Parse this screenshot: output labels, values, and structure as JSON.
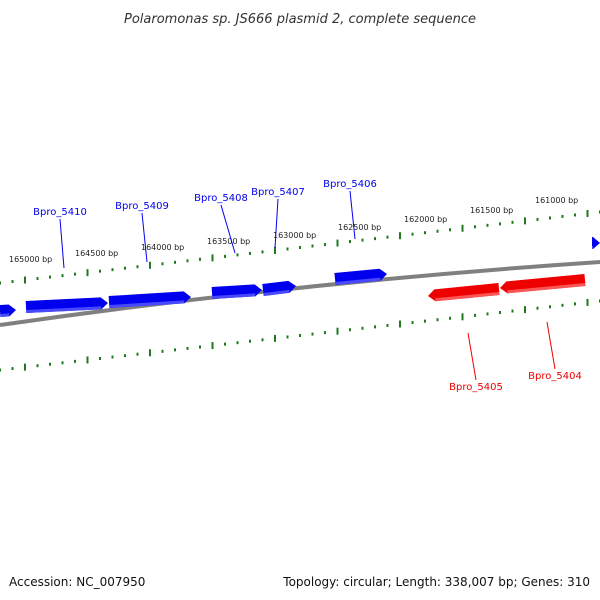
{
  "title": "Polaromonas sp. JS666 plasmid 2, complete sequence",
  "footer": {
    "accession": "Accession: NC_007950",
    "summary": "Topology: circular; Length: 338,007 bp; Genes: 310"
  },
  "colors": {
    "forward": "#0000ee",
    "forward_light": "#5a5aff",
    "reverse": "#ee0000",
    "reverse_light": "#ff6a6a",
    "backbone": "#808080",
    "ticks": "#1f7a1f"
  },
  "axis": {
    "tick_labels": [
      {
        "bp": 165000,
        "label": "165000 bp"
      },
      {
        "bp": 164500,
        "label": "164500 bp"
      },
      {
        "bp": 164000,
        "label": "164000 bp"
      },
      {
        "bp": 163500,
        "label": "163500 bp"
      },
      {
        "bp": 163000,
        "label": "163000 bp"
      },
      {
        "bp": 162500,
        "label": "162500 bp"
      },
      {
        "bp": 162000,
        "label": "162000 bp"
      },
      {
        "bp": 161500,
        "label": "161500 bp"
      },
      {
        "bp": 161000,
        "label": "161000 bp"
      }
    ]
  },
  "genes": [
    {
      "name": "Bpro_5410",
      "strand": "forward"
    },
    {
      "name": "Bpro_5409",
      "strand": "forward"
    },
    {
      "name": "Bpro_5408",
      "strand": "forward"
    },
    {
      "name": "Bpro_5407",
      "strand": "forward"
    },
    {
      "name": "Bpro_5406",
      "strand": "forward"
    },
    {
      "name": "Bpro_5405",
      "strand": "reverse"
    },
    {
      "name": "Bpro_5404",
      "strand": "reverse"
    }
  ]
}
